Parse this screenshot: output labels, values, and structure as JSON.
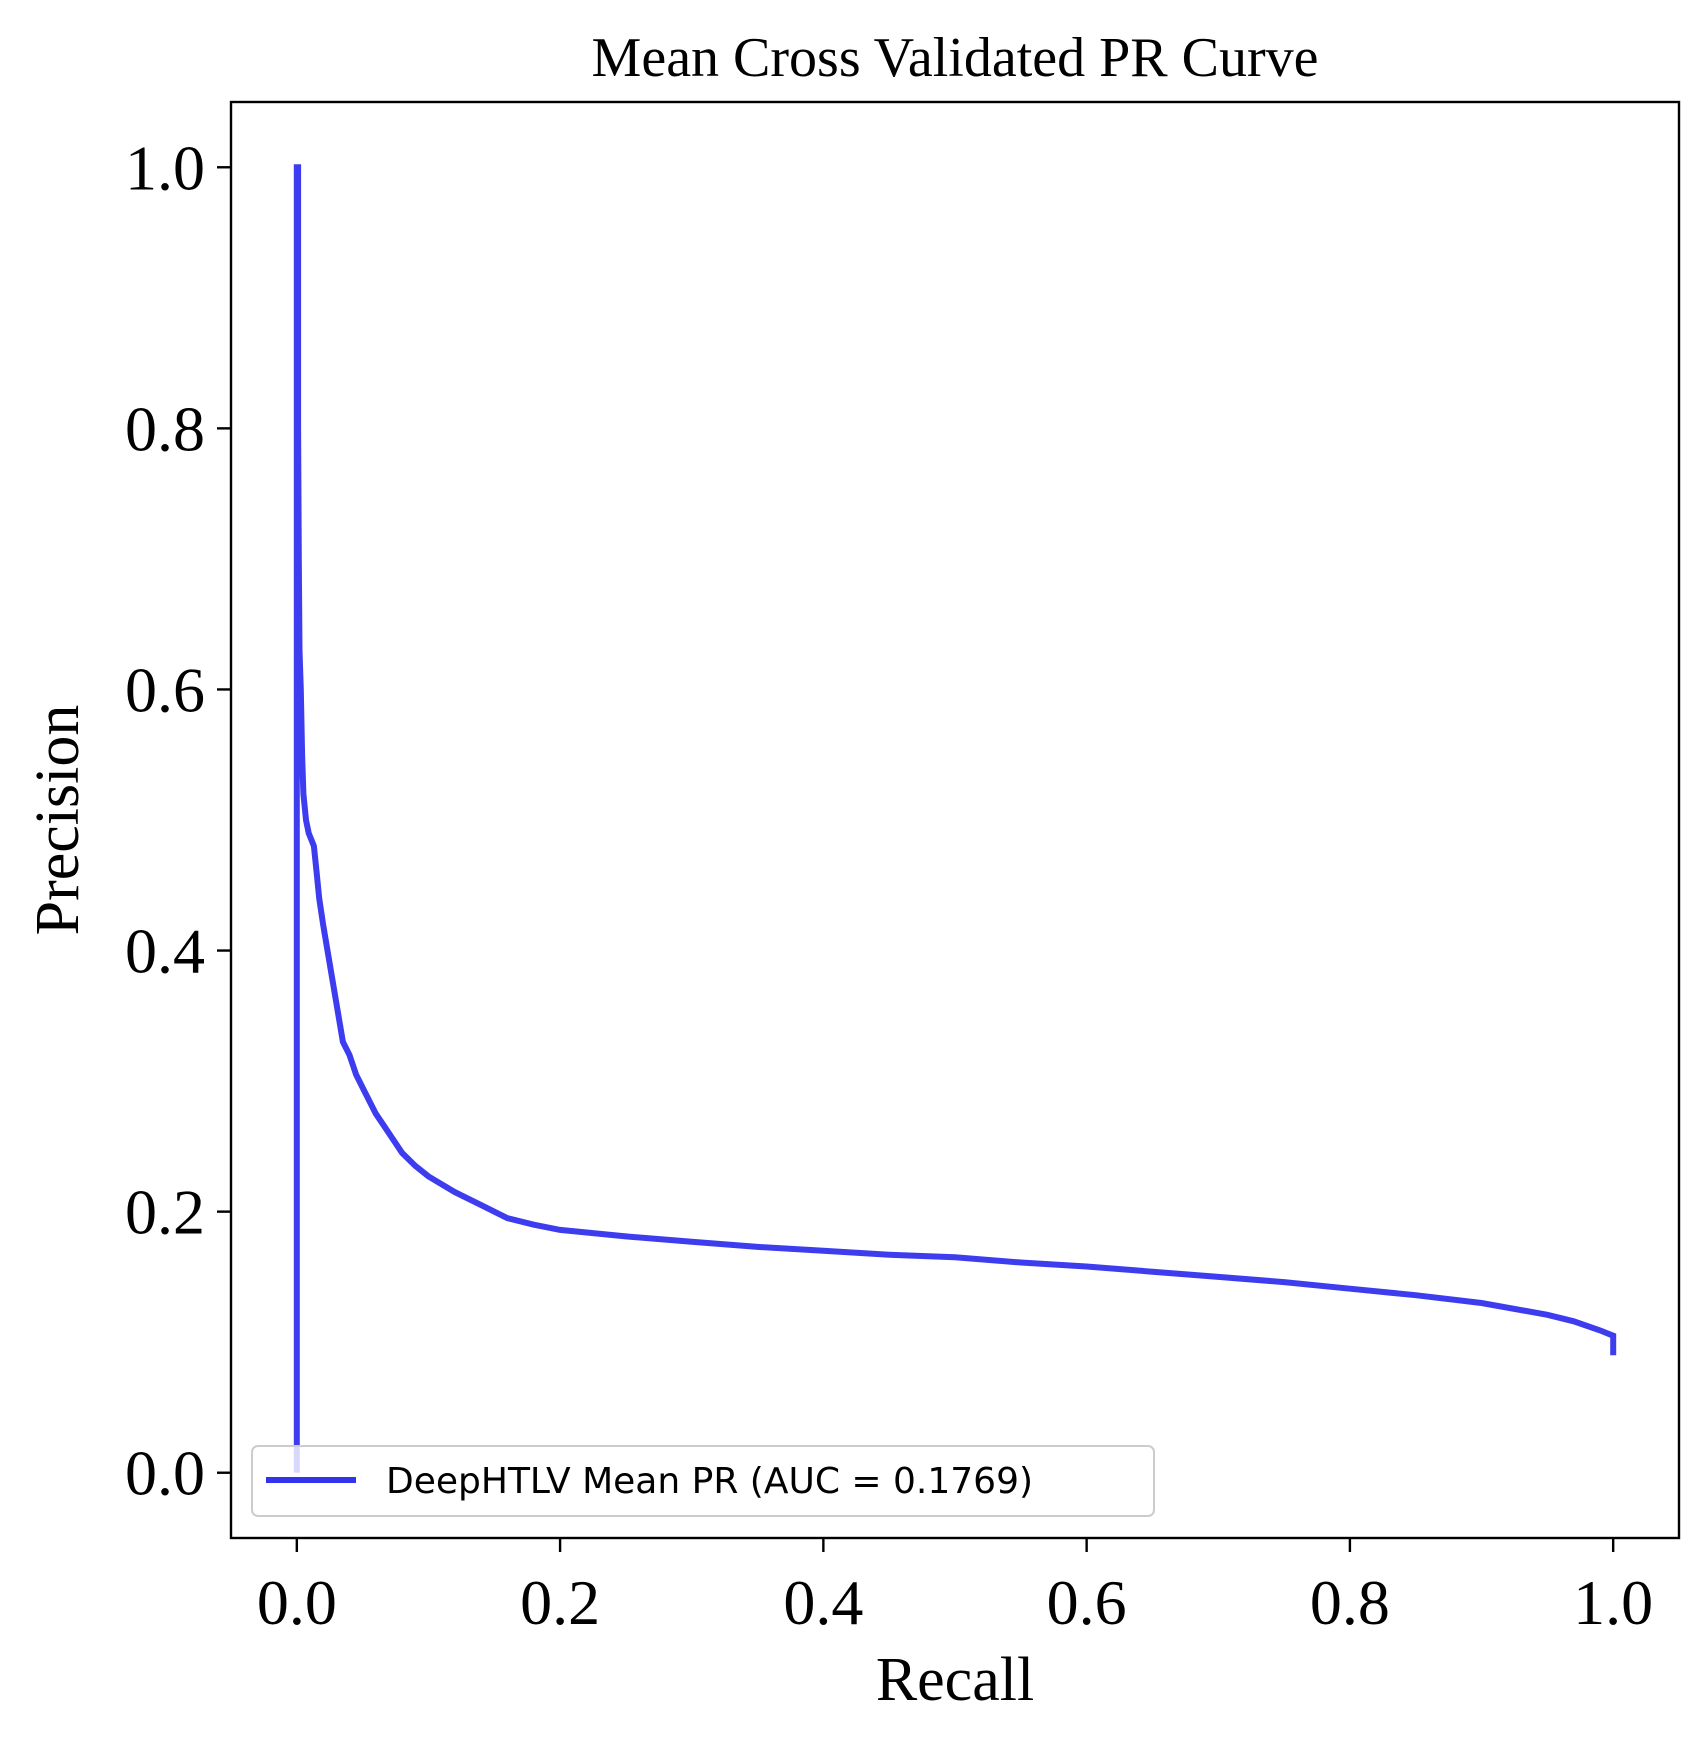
{
  "chart_data": {
    "type": "line",
    "title": "Mean Cross Validated PR Curve",
    "xlabel": "Recall",
    "ylabel": "Precision",
    "xlim": [
      -0.05,
      1.05
    ],
    "ylim": [
      -0.05,
      1.05
    ],
    "xticks": [
      0.0,
      0.2,
      0.4,
      0.6,
      0.8,
      1.0
    ],
    "xtick_labels": [
      "0.0",
      "0.2",
      "0.4",
      "0.6",
      "0.8",
      "1.0"
    ],
    "yticks": [
      0.0,
      0.2,
      0.4,
      0.6,
      0.8,
      1.0
    ],
    "ytick_labels": [
      "0.0",
      "0.2",
      "0.4",
      "0.6",
      "0.8",
      "1.0"
    ],
    "grid": false,
    "legend_position": "lower-left",
    "series": [
      {
        "name": "DeepHTLV Mean PR (AUC = 0.1769)",
        "color": "#3333ee",
        "x": [
          0,
          0,
          0.001,
          0.001,
          0.0015,
          0.002,
          0.003,
          0.004,
          0.005,
          0.007,
          0.009,
          0.011,
          0.013,
          0.015,
          0.017,
          0.02,
          0.025,
          0.03,
          0.035,
          0.04,
          0.045,
          0.05,
          0.06,
          0.07,
          0.08,
          0.09,
          0.1,
          0.12,
          0.14,
          0.16,
          0.18,
          0.2,
          0.25,
          0.3,
          0.35,
          0.4,
          0.45,
          0.5,
          0.55,
          0.6,
          0.65,
          0.7,
          0.75,
          0.8,
          0.85,
          0.9,
          0.95,
          0.97,
          0.99,
          1.0,
          1.0
        ],
        "y": [
          0,
          1.0,
          1.0,
          0.8,
          0.7,
          0.63,
          0.6,
          0.55,
          0.52,
          0.5,
          0.49,
          0.485,
          0.48,
          0.46,
          0.44,
          0.42,
          0.39,
          0.36,
          0.33,
          0.32,
          0.305,
          0.295,
          0.275,
          0.26,
          0.245,
          0.235,
          0.227,
          0.215,
          0.205,
          0.195,
          0.19,
          0.186,
          0.181,
          0.177,
          0.173,
          0.17,
          0.167,
          0.165,
          0.161,
          0.158,
          0.154,
          0.15,
          0.146,
          0.141,
          0.136,
          0.13,
          0.121,
          0.116,
          0.109,
          0.105,
          0.09
        ]
      }
    ]
  }
}
